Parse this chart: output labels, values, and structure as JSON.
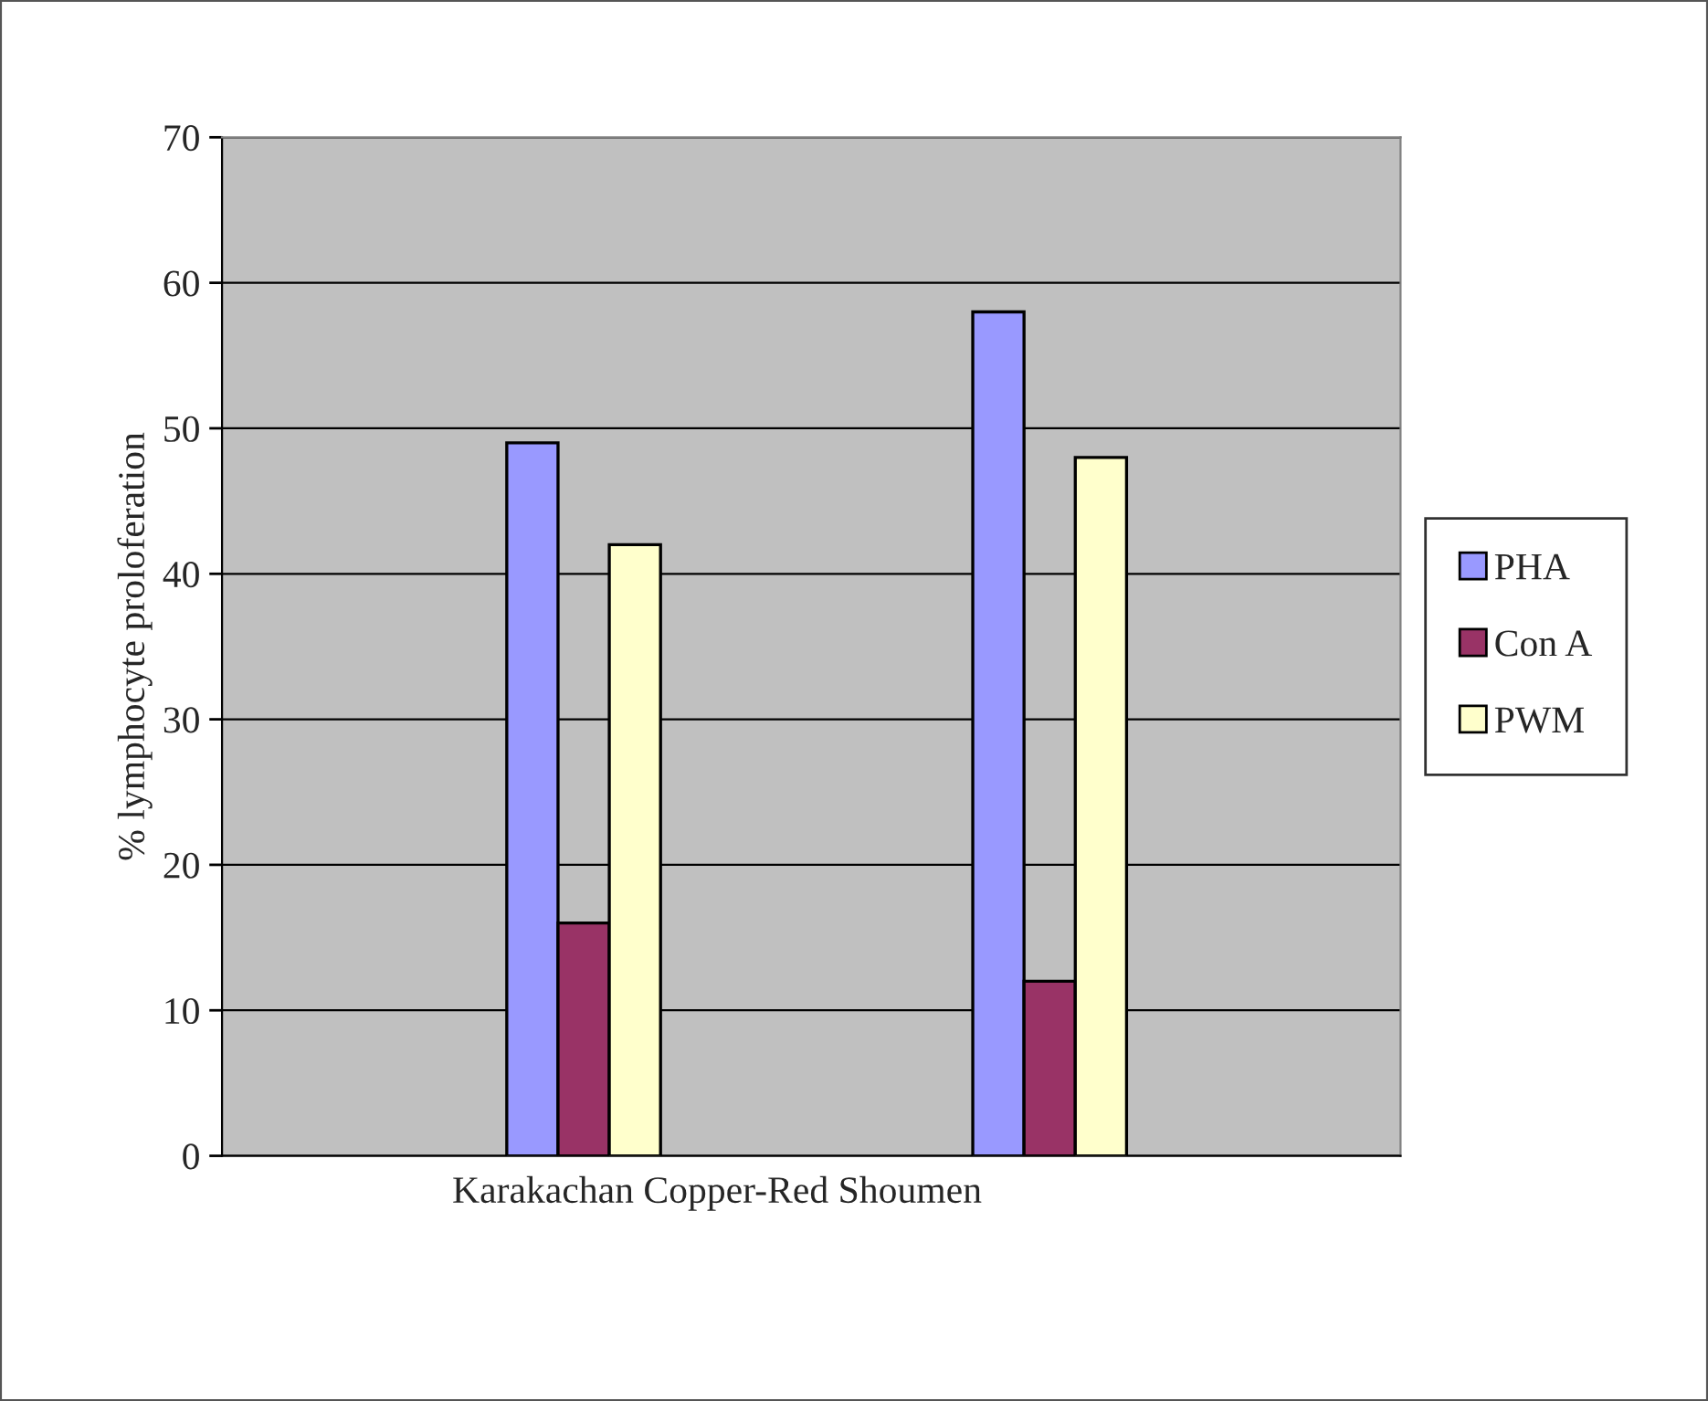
{
  "chart_data": {
    "type": "bar",
    "xlabel": "Karakachan Copper-Red Shoumen",
    "ylabel": "% lymphocyte proloferation",
    "categories": [
      null,
      null
    ],
    "series": [
      {
        "name": "PHA",
        "color": "#9999ff",
        "values": [
          49,
          58
        ]
      },
      {
        "name": "Con A",
        "color": "#993366",
        "values": [
          16,
          12
        ]
      },
      {
        "name": "PWM",
        "color": "#ffffcc",
        "values": [
          42,
          48
        ]
      }
    ],
    "ylim": [
      0,
      70
    ],
    "yticks": [
      0,
      10,
      20,
      30,
      40,
      50,
      60,
      70
    ],
    "grid": "y",
    "legend": "right"
  }
}
